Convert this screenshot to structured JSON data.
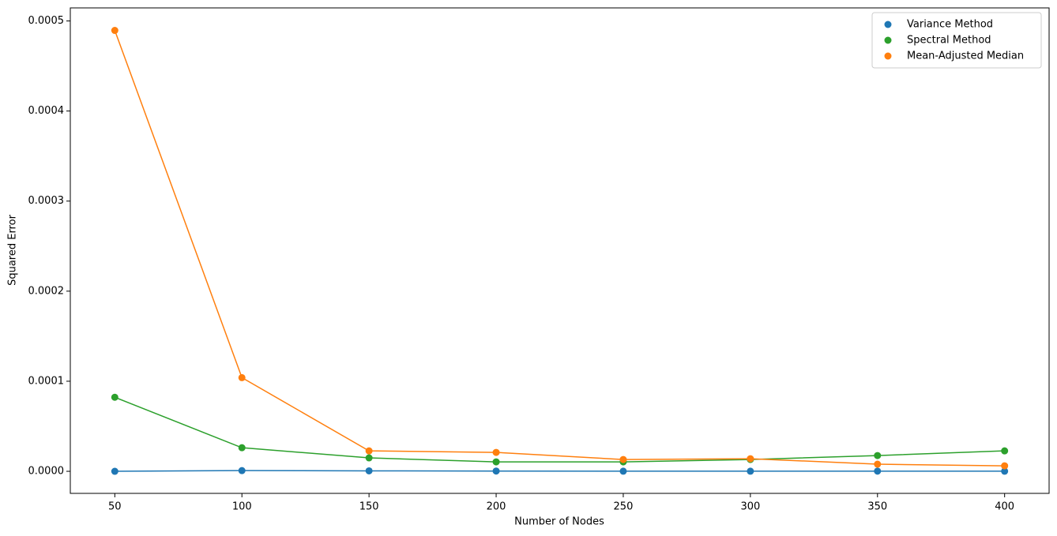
{
  "chart_data": {
    "type": "line",
    "xlabel": "Number of Nodes",
    "ylabel": "Squared Error",
    "x": [
      50,
      100,
      150,
      200,
      250,
      300,
      350,
      400
    ],
    "series": [
      {
        "name": "Variance Method",
        "color": "#1f77b4",
        "values": [
          0.0,
          8e-07,
          5e-07,
          3e-07,
          1e-07,
          1e-07,
          2e-07,
          1e-07
        ]
      },
      {
        "name": "Spectral Method",
        "color": "#2ca02c",
        "values": [
          8.22e-05,
          2.62e-05,
          1.49e-05,
          1.05e-05,
          1.05e-05,
          1.31e-05,
          1.75e-05,
          2.27e-05
        ]
      },
      {
        "name": "Mean-Adjusted Median",
        "color": "#ff7f0e",
        "values": [
          0.0004895,
          0.000104,
          2.27e-05,
          2.1e-05,
          1.31e-05,
          1.4e-05,
          7.9e-06,
          6.1e-06
        ]
      }
    ],
    "xlim": [
      32.5,
      417.5
    ],
    "xticks": [
      50,
      100,
      150,
      200,
      250,
      300,
      350,
      400
    ],
    "ylim": [
      -2.45e-05,
      0.0005145
    ],
    "yticks": [
      {
        "value": 0,
        "label": "0.0000"
      },
      {
        "value": 0.0001,
        "label": "0.0001"
      },
      {
        "value": 0.0002,
        "label": "0.0002"
      },
      {
        "value": 0.0003,
        "label": "0.0003"
      },
      {
        "value": 0.0004,
        "label": "0.0004"
      },
      {
        "value": 0.0005,
        "label": "0.0005"
      }
    ],
    "grid": false,
    "legend": "upper right"
  }
}
